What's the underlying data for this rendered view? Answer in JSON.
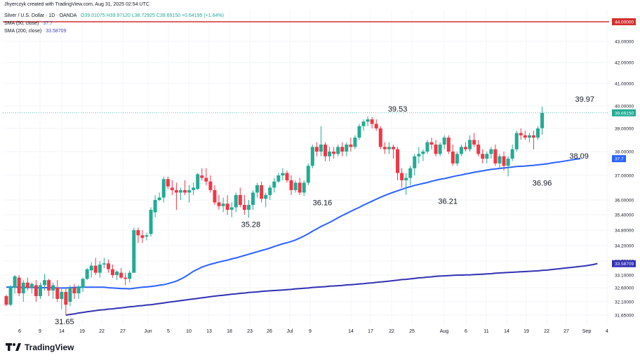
{
  "header": {
    "attribution": "Jhyerczyk created with TradingView.com, Aug 31, 2025 02:54 UTC",
    "symbol": "Silver / U.S. Dollar · 1D · OANDA",
    "ohlc": "O39.01075 H39.97120 L38.72925 C39.69150 +0.64195 (+1.64%)",
    "ma50_label": "SMA (50, close)",
    "ma50_value": "37.7",
    "ma200_label": "SMA (200, close)",
    "ma200_value": "33.58709"
  },
  "footer": {
    "brand": "TradingView"
  },
  "colors": {
    "up": "#22ab94",
    "down": "#f23645",
    "ma50": "#2962ff",
    "ma200": "#3131b4",
    "resistance": "#d32f2f",
    "price_line": "#22ab94"
  },
  "chart_data": {
    "type": "candlestick",
    "y_scale": "log",
    "ylim": [
      31.45,
      44.4
    ],
    "y_ticks": [
      "44.00000",
      "43.00000",
      "42.00000",
      "41.00000",
      "40.00000",
      "39.00000",
      "38.00000",
      "37.00000",
      "36.00000",
      "35.40000",
      "34.80000",
      "34.20000",
      "33.70000",
      "33.10000",
      "32.60000",
      "32.10000",
      "31.65000"
    ],
    "x_ticks": [
      "6",
      "9",
      "14",
      "19",
      "22",
      "27",
      "Jun",
      "5",
      "10",
      "13",
      "18",
      "23",
      "26",
      "Jul",
      "9",
      "14",
      "17",
      "22",
      "25",
      "Aug",
      "6",
      "11",
      "14",
      "19",
      "22",
      "27",
      "Sep",
      "4"
    ],
    "resistance_level": {
      "value": 44.0,
      "label": "44.00000"
    },
    "last_price": {
      "value": 39.6915,
      "label": "39.69150"
    },
    "ma50_last": {
      "value": 37.7,
      "label": "37.7"
    },
    "ma200_last": {
      "value": 33.58709,
      "label": "33.58709"
    },
    "annotations": [
      {
        "text": "31.65",
        "value": 31.65,
        "bar": 14
      },
      {
        "text": "35.28",
        "value": 35.28,
        "bar": 57
      },
      {
        "text": "36.16",
        "value": 36.16,
        "bar": 74
      },
      {
        "text": "39.53",
        "value": 39.53,
        "bar": 93
      },
      {
        "text": "36.21",
        "value": 36.21,
        "bar": 103
      },
      {
        "text": "36.96",
        "value": 36.96,
        "bar": 126
      },
      {
        "text": "38.09",
        "value": 38.09,
        "bar": 135
      },
      {
        "text": "39.97",
        "value": 39.97,
        "bar": 137
      }
    ],
    "candles": [
      [
        32.3,
        32.35,
        31.95,
        32.0
      ],
      [
        32.0,
        32.7,
        31.95,
        32.65
      ],
      [
        32.6,
        33.1,
        32.4,
        33.05
      ],
      [
        33.0,
        33.1,
        32.3,
        32.4
      ],
      [
        32.4,
        32.9,
        32.1,
        32.8
      ],
      [
        32.8,
        33.0,
        32.5,
        32.6
      ],
      [
        32.6,
        32.8,
        32.4,
        32.75
      ],
      [
        32.7,
        32.9,
        32.1,
        32.3
      ],
      [
        32.3,
        32.8,
        32.2,
        32.7
      ],
      [
        32.7,
        33.15,
        32.5,
        32.9
      ],
      [
        32.9,
        32.95,
        32.3,
        32.5
      ],
      [
        32.5,
        32.8,
        32.2,
        32.7
      ],
      [
        32.6,
        32.9,
        32.1,
        32.2
      ],
      [
        32.2,
        32.6,
        31.85,
        32.45
      ],
      [
        32.45,
        32.6,
        31.65,
        32.0
      ],
      [
        32.1,
        32.7,
        31.95,
        32.6
      ],
      [
        32.6,
        32.75,
        32.2,
        32.4
      ],
      [
        32.4,
        32.7,
        32.2,
        32.65
      ],
      [
        32.6,
        33.0,
        32.45,
        32.95
      ],
      [
        32.95,
        33.4,
        32.9,
        33.35
      ],
      [
        33.3,
        33.65,
        33.0,
        33.5
      ],
      [
        33.5,
        33.8,
        33.1,
        33.2
      ],
      [
        33.2,
        33.7,
        33.0,
        33.55
      ],
      [
        33.55,
        33.8,
        33.4,
        33.6
      ],
      [
        33.6,
        33.75,
        33.2,
        33.35
      ],
      [
        33.35,
        33.55,
        33.0,
        33.1
      ],
      [
        33.1,
        33.3,
        32.9,
        33.25
      ],
      [
        33.2,
        33.4,
        32.95,
        33.0
      ],
      [
        33.0,
        33.2,
        32.7,
        32.95
      ],
      [
        32.95,
        33.3,
        32.8,
        33.2
      ],
      [
        33.2,
        34.9,
        33.2,
        34.8
      ],
      [
        34.8,
        34.9,
        34.3,
        34.6
      ],
      [
        34.6,
        34.8,
        34.3,
        34.5
      ],
      [
        34.55,
        34.7,
        34.4,
        34.6
      ],
      [
        34.65,
        35.7,
        34.55,
        35.6
      ],
      [
        35.5,
        36.2,
        35.3,
        36.0
      ],
      [
        36.0,
        36.3,
        35.95,
        36.1
      ],
      [
        36.1,
        36.95,
        35.9,
        36.85
      ],
      [
        36.85,
        36.95,
        36.45,
        36.55
      ],
      [
        36.5,
        36.8,
        36.2,
        36.4
      ],
      [
        36.4,
        36.7,
        35.6,
        36.3
      ],
      [
        36.3,
        36.5,
        36.0,
        36.4
      ],
      [
        36.4,
        36.8,
        36.2,
        36.3
      ],
      [
        36.3,
        36.6,
        35.9,
        36.4
      ],
      [
        36.4,
        36.7,
        36.2,
        36.5
      ],
      [
        36.45,
        37.1,
        36.4,
        37.05
      ],
      [
        37.0,
        37.3,
        36.8,
        36.9
      ],
      [
        36.9,
        37.3,
        36.6,
        36.75
      ],
      [
        36.75,
        37.0,
        36.3,
        36.4
      ],
      [
        36.4,
        36.6,
        35.8,
        35.9
      ],
      [
        35.9,
        36.2,
        35.6,
        35.75
      ],
      [
        35.75,
        36.1,
        35.5,
        35.85
      ],
      [
        35.85,
        36.2,
        35.4,
        35.6
      ],
      [
        35.6,
        35.9,
        35.3,
        35.7
      ],
      [
        35.7,
        36.3,
        35.5,
        36.2
      ],
      [
        36.2,
        36.5,
        35.7,
        35.8
      ],
      [
        35.8,
        36.2,
        35.4,
        35.6
      ],
      [
        35.6,
        36.0,
        35.28,
        35.8
      ],
      [
        35.8,
        36.4,
        35.6,
        36.3
      ],
      [
        36.3,
        36.7,
        36.1,
        36.6
      ],
      [
        36.6,
        36.75,
        35.9,
        36.05
      ],
      [
        36.05,
        36.3,
        35.7,
        36.2
      ],
      [
        36.2,
        36.6,
        36.0,
        36.5
      ],
      [
        36.5,
        36.9,
        36.3,
        36.75
      ],
      [
        36.75,
        37.1,
        36.7,
        37.0
      ],
      [
        37.0,
        37.3,
        36.8,
        37.1
      ],
      [
        37.1,
        37.2,
        36.7,
        36.8
      ],
      [
        36.8,
        37.0,
        36.2,
        36.4
      ],
      [
        36.4,
        36.8,
        36.3,
        36.7
      ],
      [
        36.7,
        36.9,
        36.2,
        36.3
      ],
      [
        36.3,
        36.8,
        36.16,
        36.7
      ],
      [
        36.7,
        37.5,
        36.6,
        37.4
      ],
      [
        37.4,
        38.3,
        37.3,
        38.2
      ],
      [
        38.2,
        38.4,
        37.8,
        38.0
      ],
      [
        38.0,
        39.1,
        37.8,
        38.3
      ],
      [
        38.3,
        38.4,
        37.6,
        37.8
      ],
      [
        37.8,
        38.2,
        37.6,
        38.0
      ],
      [
        38.0,
        38.2,
        37.7,
        37.9
      ],
      [
        37.9,
        38.3,
        37.8,
        38.2
      ],
      [
        38.2,
        38.4,
        37.8,
        38.0
      ],
      [
        38.0,
        38.4,
        37.8,
        38.3
      ],
      [
        38.3,
        38.6,
        38.0,
        38.2
      ],
      [
        38.2,
        38.7,
        38.1,
        38.6
      ],
      [
        38.6,
        39.2,
        38.5,
        39.1
      ],
      [
        39.1,
        39.4,
        38.9,
        39.3
      ],
      [
        39.3,
        39.53,
        39.1,
        39.4
      ],
      [
        39.4,
        39.5,
        39.0,
        39.2
      ],
      [
        39.2,
        39.4,
        38.9,
        39.0
      ],
      [
        39.0,
        39.1,
        38.1,
        38.2
      ],
      [
        38.2,
        38.4,
        37.9,
        38.1
      ],
      [
        38.1,
        38.4,
        37.9,
        38.2
      ],
      [
        38.2,
        38.3,
        37.7,
        38.1
      ],
      [
        38.1,
        38.2,
        36.8,
        37.1
      ],
      [
        37.1,
        37.3,
        36.5,
        36.8
      ],
      [
        36.8,
        37.1,
        36.21,
        36.9
      ],
      [
        36.9,
        37.4,
        36.6,
        37.3
      ],
      [
        37.3,
        37.9,
        37.0,
        37.8
      ],
      [
        37.8,
        38.2,
        37.5,
        37.9
      ],
      [
        37.9,
        38.1,
        37.6,
        38.0
      ],
      [
        38.0,
        38.5,
        37.9,
        38.4
      ],
      [
        38.4,
        38.6,
        38.1,
        38.3
      ],
      [
        38.3,
        38.5,
        37.8,
        37.9
      ],
      [
        37.9,
        38.4,
        37.8,
        38.3
      ],
      [
        38.3,
        38.7,
        38.1,
        38.6
      ],
      [
        38.6,
        38.7,
        37.9,
        38.0
      ],
      [
        38.0,
        38.3,
        37.4,
        37.5
      ],
      [
        37.5,
        38.0,
        37.4,
        37.9
      ],
      [
        37.9,
        38.3,
        37.8,
        38.2
      ],
      [
        38.2,
        38.4,
        38.0,
        38.1
      ],
      [
        38.1,
        38.7,
        38.0,
        38.5
      ],
      [
        38.5,
        38.8,
        38.2,
        38.3
      ],
      [
        38.3,
        38.5,
        37.8,
        37.9
      ],
      [
        37.9,
        38.1,
        37.5,
        37.7
      ],
      [
        37.7,
        38.0,
        37.5,
        37.9
      ],
      [
        37.9,
        38.2,
        37.7,
        38.1
      ],
      [
        38.1,
        38.3,
        37.4,
        37.5
      ],
      [
        37.5,
        37.9,
        37.3,
        37.8
      ],
      [
        37.8,
        38.0,
        37.2,
        37.4
      ],
      [
        37.4,
        37.8,
        36.96,
        37.7
      ],
      [
        37.7,
        38.3,
        37.6,
        38.1
      ],
      [
        38.1,
        38.9,
        38.0,
        38.8
      ],
      [
        38.8,
        39.0,
        38.5,
        38.7
      ],
      [
        38.7,
        38.9,
        38.5,
        38.6
      ],
      [
        38.6,
        38.8,
        38.4,
        38.7
      ],
      [
        38.7,
        38.9,
        38.09,
        38.6
      ],
      [
        38.6,
        39.1,
        38.5,
        39.0
      ],
      [
        39.01075,
        39.9712,
        38.72925,
        39.6915
      ]
    ],
    "ma50": [
      32.62,
      32.63,
      32.62,
      32.62,
      32.61,
      32.61,
      32.61,
      32.6,
      32.6,
      32.6,
      32.6,
      32.6,
      32.59,
      32.59,
      32.59,
      32.6,
      32.61,
      32.61,
      32.62,
      32.62,
      32.62,
      32.62,
      32.62,
      32.62,
      32.6,
      32.59,
      32.58,
      32.57,
      32.57,
      32.56,
      32.58,
      32.6,
      32.62,
      32.63,
      32.65,
      32.67,
      32.7,
      32.72,
      32.76,
      32.81,
      32.86,
      32.94,
      33.03,
      33.14,
      33.26,
      33.35,
      33.44,
      33.5,
      33.56,
      33.61,
      33.66,
      33.7,
      33.73,
      33.77,
      33.8,
      33.84,
      33.88,
      33.92,
      33.96,
      34.0,
      34.04,
      34.08,
      34.12,
      34.17,
      34.22,
      34.27,
      34.31,
      34.36,
      34.42,
      34.49,
      34.57,
      34.66,
      34.76,
      34.85,
      34.94,
      35.02,
      35.1,
      35.19,
      35.28,
      35.37,
      35.45,
      35.54,
      35.62,
      35.7,
      35.79,
      35.87,
      35.95,
      36.03,
      36.11,
      36.18,
      36.25,
      36.31,
      36.37,
      36.43,
      36.49,
      36.54,
      36.59,
      36.63,
      36.67,
      36.71,
      36.76,
      36.8,
      36.84,
      36.87,
      36.91,
      36.95,
      36.99,
      37.02,
      37.06,
      37.09,
      37.13,
      37.16,
      37.19,
      37.22,
      37.25,
      37.27,
      37.29,
      37.31,
      37.33,
      37.35,
      37.37,
      37.38,
      37.39,
      37.41,
      37.42,
      37.44,
      37.46,
      37.48,
      37.51,
      37.54,
      37.56,
      37.59,
      37.62,
      37.65,
      37.68,
      37.7
    ],
    "ma200_start_bar": 14,
    "ma200": [
      31.65,
      31.67,
      31.69,
      31.72,
      31.74,
      31.76,
      31.78,
      31.8,
      31.82,
      31.83,
      31.85,
      31.86,
      31.88,
      31.89,
      31.91,
      31.93,
      31.94,
      31.96,
      31.97,
      31.99,
      32.0,
      32.02,
      32.04,
      32.06,
      32.08,
      32.1,
      32.12,
      32.14,
      32.16,
      32.18,
      32.2,
      32.22,
      32.24,
      32.26,
      32.28,
      32.3,
      32.32,
      32.33,
      32.35,
      32.37,
      32.38,
      32.4,
      32.41,
      32.43,
      32.44,
      32.45,
      32.47,
      32.48,
      32.49,
      32.5,
      32.51,
      32.52,
      32.53,
      32.54,
      32.56,
      32.57,
      32.58,
      32.59,
      32.61,
      32.62,
      32.63,
      32.64,
      32.66,
      32.67,
      32.68,
      32.69,
      32.71,
      32.72,
      32.73,
      32.75,
      32.76,
      32.78,
      32.79,
      32.81,
      32.83,
      32.84,
      32.86,
      32.88,
      32.9,
      32.92,
      32.93,
      32.95,
      32.97,
      32.99,
      33.0,
      33.02,
      33.03,
      33.05,
      33.06,
      33.07,
      33.08,
      33.09,
      33.1,
      33.1,
      33.11,
      33.11,
      33.12,
      33.13,
      33.14,
      33.15,
      33.16,
      33.18,
      33.19,
      33.2,
      33.21,
      33.22,
      33.23,
      33.24,
      33.25,
      33.26,
      33.27,
      33.28,
      33.3,
      33.31,
      33.33,
      33.35,
      33.37,
      33.39,
      33.41,
      33.43,
      33.45,
      33.47,
      33.49,
      33.52,
      33.55,
      33.59
    ]
  }
}
